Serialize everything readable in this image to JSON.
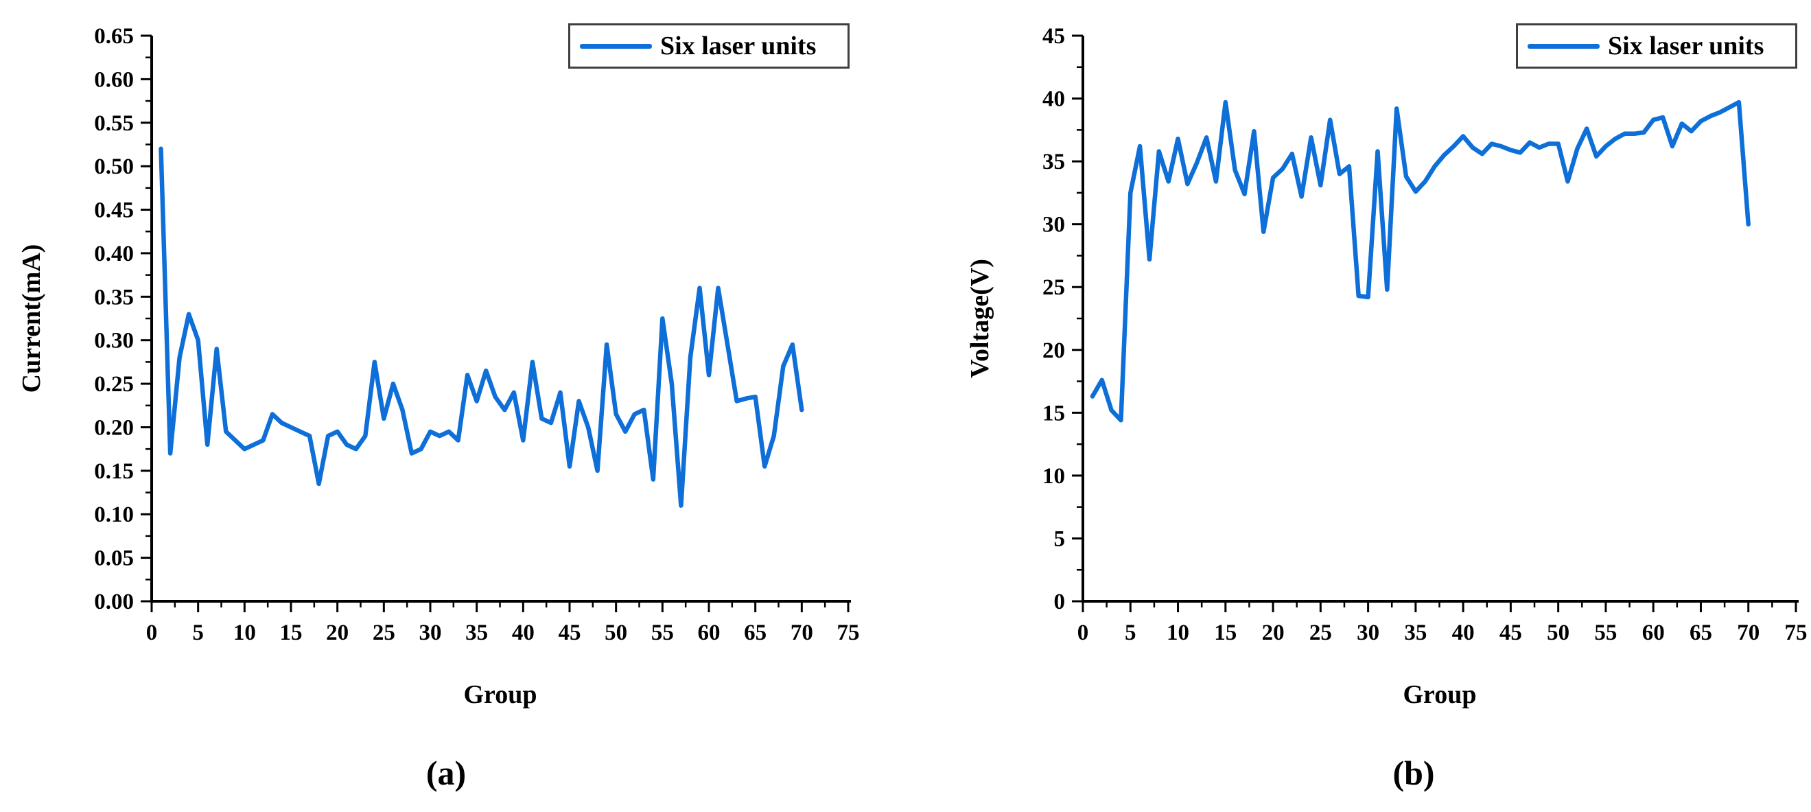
{
  "figure": {
    "background": "#ffffff",
    "axis_color": "#000000",
    "line_color": "#0e6fd8",
    "legend_border_color": "#3f3f3f",
    "panel_a_label": "(a)",
    "panel_b_label": "(b)"
  },
  "chart_data": [
    {
      "type": "line",
      "panel": "a",
      "title": "",
      "xlabel": "Group",
      "ylabel": "Current(mA)",
      "legend_label": "Six laser units",
      "legend_position": "top-right",
      "grid": false,
      "xlim": [
        0,
        75
      ],
      "ylim": [
        0,
        0.65
      ],
      "x_start": 1,
      "x_step": 1,
      "x_tick_labels": [
        "0",
        "5",
        "10",
        "15",
        "20",
        "25",
        "30",
        "35",
        "40",
        "45",
        "50",
        "55",
        "60",
        "65",
        "70",
        "75"
      ],
      "y_tick_labels": [
        "0.00",
        "0.05",
        "0.10",
        "0.15",
        "0.20",
        "0.25",
        "0.30",
        "0.35",
        "0.40",
        "0.45",
        "0.50",
        "0.55",
        "0.60",
        "0.65"
      ],
      "values": [
        0.52,
        0.17,
        0.28,
        0.33,
        0.3,
        0.18,
        0.29,
        0.195,
        0.185,
        0.175,
        0.18,
        0.185,
        0.215,
        0.205,
        0.2,
        0.195,
        0.19,
        0.135,
        0.19,
        0.195,
        0.18,
        0.175,
        0.19,
        0.275,
        0.21,
        0.25,
        0.22,
        0.17,
        0.175,
        0.195,
        0.19,
        0.195,
        0.185,
        0.26,
        0.23,
        0.265,
        0.235,
        0.22,
        0.24,
        0.185,
        0.275,
        0.21,
        0.205,
        0.24,
        0.155,
        0.23,
        0.2,
        0.15,
        0.295,
        0.215,
        0.195,
        0.215,
        0.22,
        0.14,
        0.325,
        0.25,
        0.11,
        0.28,
        0.36,
        0.26,
        0.36,
        0.295,
        0.23,
        0.233,
        0.235,
        0.155,
        0.19,
        0.27,
        0.295,
        0.22
      ]
    },
    {
      "type": "line",
      "panel": "b",
      "title": "",
      "xlabel": "Group",
      "ylabel": "Voltage(V)",
      "legend_label": "Six laser units",
      "legend_position": "top-right",
      "grid": false,
      "xlim": [
        0,
        75
      ],
      "ylim": [
        0,
        45
      ],
      "x_start": 1,
      "x_step": 1,
      "x_tick_labels": [
        "0",
        "5",
        "10",
        "15",
        "20",
        "25",
        "30",
        "35",
        "40",
        "45",
        "50",
        "55",
        "60",
        "65",
        "70",
        "75"
      ],
      "y_tick_labels": [
        "0",
        "5",
        "10",
        "15",
        "20",
        "25",
        "30",
        "35",
        "40",
        "45"
      ],
      "values": [
        16.3,
        17.6,
        15.2,
        14.4,
        32.5,
        36.2,
        27.2,
        35.8,
        33.4,
        36.8,
        33.2,
        34.9,
        36.9,
        33.4,
        39.7,
        34.3,
        32.4,
        37.4,
        29.4,
        33.7,
        34.4,
        35.6,
        32.2,
        36.9,
        33.1,
        38.3,
        34.0,
        34.6,
        24.3,
        24.2,
        35.8,
        24.8,
        39.2,
        33.8,
        32.6,
        33.4,
        34.6,
        35.5,
        36.2,
        37.0,
        36.1,
        35.6,
        36.4,
        36.2,
        35.9,
        35.7,
        36.5,
        36.1,
        36.4,
        36.4,
        33.4,
        36.0,
        37.6,
        35.4,
        36.2,
        36.8,
        37.2,
        37.2,
        37.3,
        38.3,
        38.5,
        36.2,
        38.0,
        37.4,
        38.2,
        38.6,
        38.9,
        39.3,
        39.7,
        30.0
      ]
    }
  ]
}
